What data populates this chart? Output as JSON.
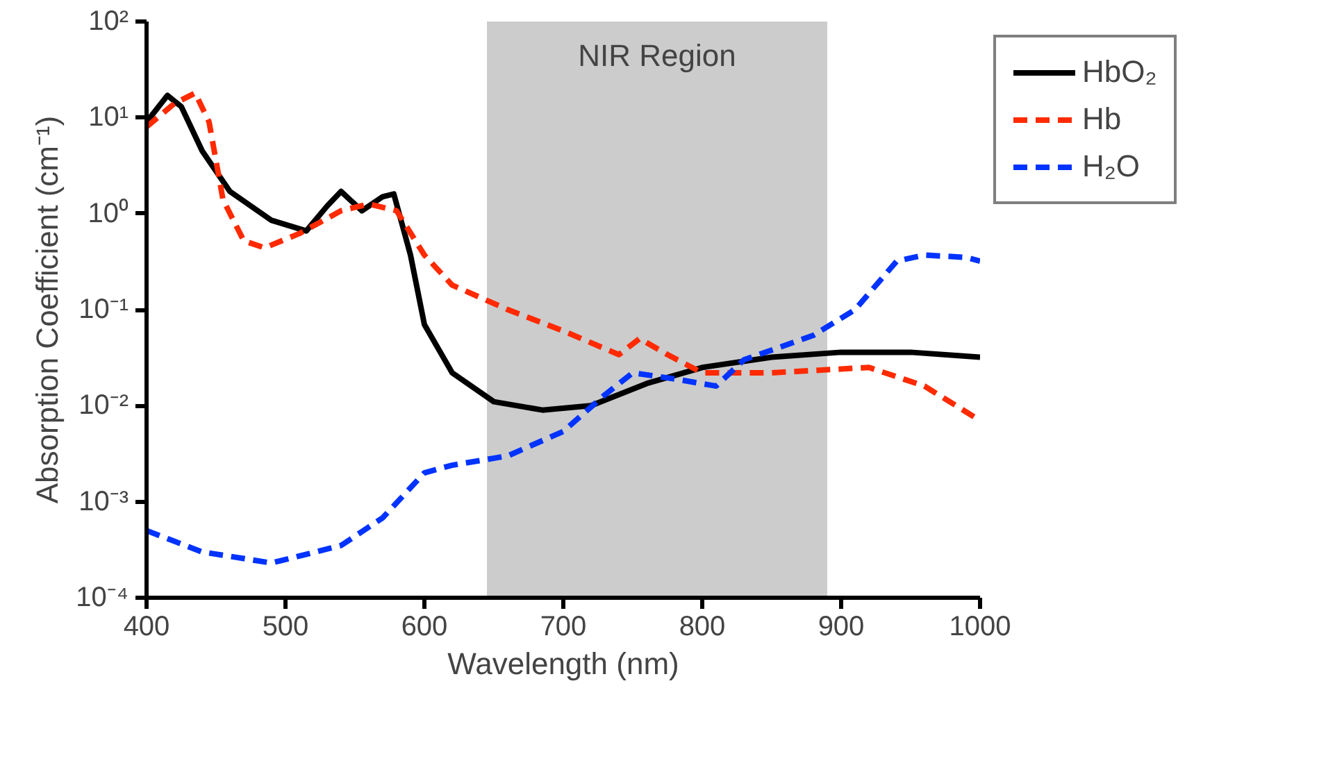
{
  "chart_data": {
    "type": "line",
    "xlabel": "Wavelength (nm)",
    "ylabel": "Absorption Coefficient (cm⁻¹)",
    "xlim": [
      400,
      1000
    ],
    "xticks": [
      400,
      500,
      600,
      700,
      800,
      900,
      1000
    ],
    "ylim": [
      0.0001,
      100
    ],
    "yticks": [
      {
        "value": 0.0001,
        "label": "10⁻⁴"
      },
      {
        "value": 0.001,
        "label": "10⁻³"
      },
      {
        "value": 0.01,
        "label": "10⁻²"
      },
      {
        "value": 0.1,
        "label": "10⁻¹"
      },
      {
        "value": 1,
        "label": "10⁰"
      },
      {
        "value": 10,
        "label": "10¹"
      },
      {
        "value": 100,
        "label": "10²"
      }
    ],
    "log": "y",
    "grid": false,
    "legend": "top right",
    "bands": [
      {
        "axis": "x",
        "from": 645,
        "to": 890,
        "label": "NIR Region",
        "color": "#cccccc"
      }
    ],
    "series": [
      {
        "name": "HbO₂",
        "color": "#000000",
        "line_style": "solid",
        "x": [
          400,
          415,
          425,
          440,
          460,
          490,
          515,
          530,
          540,
          555,
          570,
          578,
          590,
          600,
          620,
          650,
          685,
          720,
          760,
          800,
          850,
          900,
          950,
          1000
        ],
        "values": [
          9,
          17,
          13,
          4.5,
          1.7,
          0.85,
          0.66,
          1.2,
          1.7,
          1.07,
          1.5,
          1.6,
          0.37,
          0.07,
          0.022,
          0.011,
          0.009,
          0.01,
          0.017,
          0.025,
          0.032,
          0.036,
          0.036,
          0.032
        ]
      },
      {
        "name": "Hb",
        "color": "#ff2a00",
        "line_style": "dashed",
        "x": [
          400,
          420,
          435,
          445,
          455,
          470,
          485,
          510,
          540,
          560,
          580,
          600,
          620,
          660,
          700,
          740,
          755,
          775,
          800,
          850,
          920,
          960,
          1000
        ],
        "values": [
          8,
          14,
          18,
          9,
          1.4,
          0.52,
          0.44,
          0.62,
          1.07,
          1.26,
          1.07,
          0.37,
          0.18,
          0.1,
          0.06,
          0.034,
          0.05,
          0.034,
          0.022,
          0.022,
          0.025,
          0.016,
          0.007
        ]
      },
      {
        "name": "H₂O",
        "color": "#0033ff",
        "line_style": "dashed",
        "x": [
          400,
          440,
          490,
          540,
          570,
          600,
          620,
          660,
          700,
          730,
          750,
          780,
          810,
          830,
          880,
          910,
          940,
          960,
          990,
          1000
        ],
        "values": [
          0.0005,
          0.0003,
          0.00023,
          0.00035,
          0.00068,
          0.002,
          0.0024,
          0.003,
          0.0054,
          0.013,
          0.022,
          0.019,
          0.016,
          0.03,
          0.054,
          0.1,
          0.32,
          0.37,
          0.35,
          0.32
        ]
      }
    ]
  }
}
